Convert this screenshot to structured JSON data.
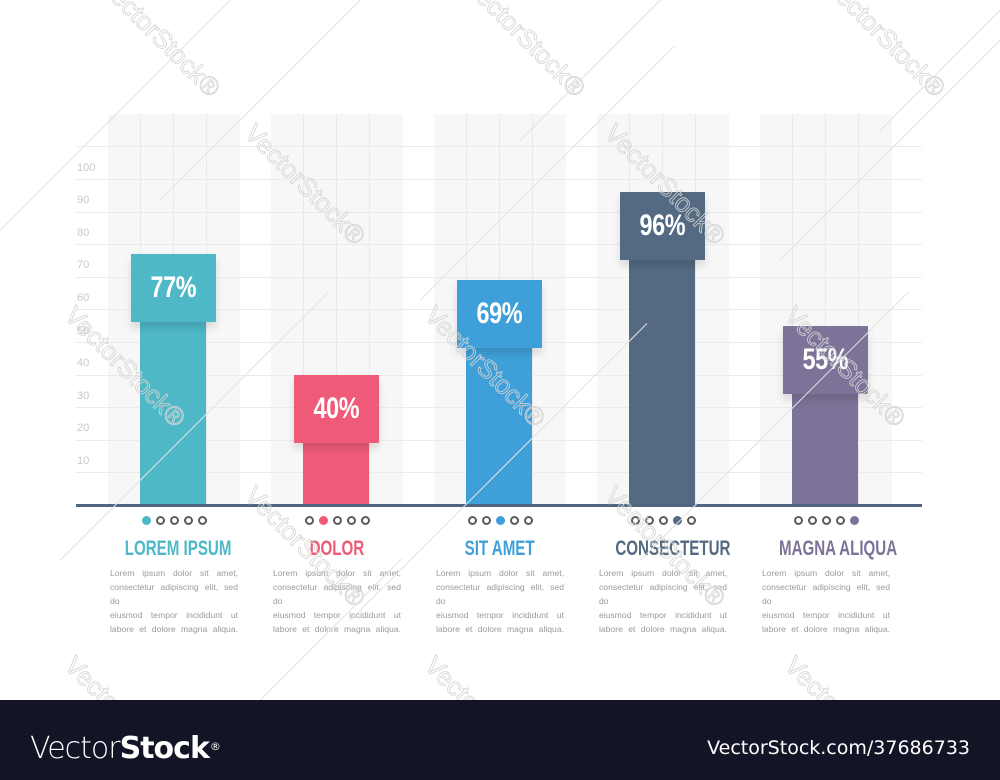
{
  "chart_data": {
    "type": "bar",
    "title": "",
    "xlabel": "",
    "ylabel": "",
    "ylim": [
      0,
      100
    ],
    "yticks": [
      10,
      20,
      30,
      40,
      50,
      60,
      70,
      80,
      90,
      100
    ],
    "grid": true,
    "categories": [
      "LOREM IPSUM",
      "DOLOR",
      "SIT AMET",
      "CONSECTETUR",
      "MAGNA ALIQUA"
    ],
    "values": [
      77,
      40,
      69,
      96,
      55
    ],
    "value_labels": [
      "77%",
      "40%",
      "69%",
      "96%",
      "55%"
    ],
    "colors": [
      "#4fb8c7",
      "#ef5a78",
      "#3fa0d9",
      "#536a82",
      "#7d7399"
    ]
  },
  "yaxis": {
    "ticks": [
      "10",
      "20",
      "30",
      "40",
      "50",
      "60",
      "70",
      "80",
      "90",
      "100"
    ]
  },
  "items": [
    {
      "title": "LOREM IPSUM",
      "value": 77,
      "label": "77%",
      "color": "#4fb8c7",
      "active_dot": 0,
      "desc": [
        "Lorem ipsum dolor sit amet,",
        "consectetur adipiscing elit, sed do",
        "eiusmod tempor incididunt ut",
        "labore et dolore magna aliqua."
      ]
    },
    {
      "title": "DOLOR",
      "value": 40,
      "label": "40%",
      "color": "#ef5a78",
      "active_dot": 1,
      "desc": [
        "Lorem ipsum dolor sit amet,",
        "consectetur adipiscing elit, sed do",
        "eiusmod tempor incididunt ut",
        "labore et dolore magna aliqua."
      ]
    },
    {
      "title": "SIT AMET",
      "value": 69,
      "label": "69%",
      "color": "#3fa0d9",
      "active_dot": 2,
      "desc": [
        "Lorem ipsum dolor sit amet,",
        "consectetur adipiscing elit, sed do",
        "eiusmod tempor incididunt ut",
        "labore et dolore magna aliqua."
      ]
    },
    {
      "title": "CONSECTETUR",
      "value": 96,
      "label": "96%",
      "color": "#536a82",
      "active_dot": 3,
      "desc": [
        "Lorem ipsum dolor sit amet,",
        "consectetur adipiscing elit, sed do",
        "eiusmod tempor incididunt ut",
        "labore et dolore magna aliqua."
      ]
    },
    {
      "title": "MAGNA ALIQUA",
      "value": 55,
      "label": "55%",
      "color": "#7d7399",
      "active_dot": 4,
      "desc": [
        "Lorem ipsum dolor sit amet,",
        "consectetur adipiscing elit, sed do",
        "eiusmod tempor incididunt ut",
        "labore et dolore magna aliqua."
      ]
    }
  ],
  "watermark": {
    "text": "VectorStock",
    "mark": "®"
  },
  "footer": {
    "logo_light": "Vector",
    "logo_bold": "Stock",
    "logo_mark": "®",
    "image_id": "VectorStock.com/37686733"
  },
  "style": {
    "baseline_color": "#4f6580",
    "footer_bg": "#131425",
    "grid_band": "#f7f7f7"
  }
}
